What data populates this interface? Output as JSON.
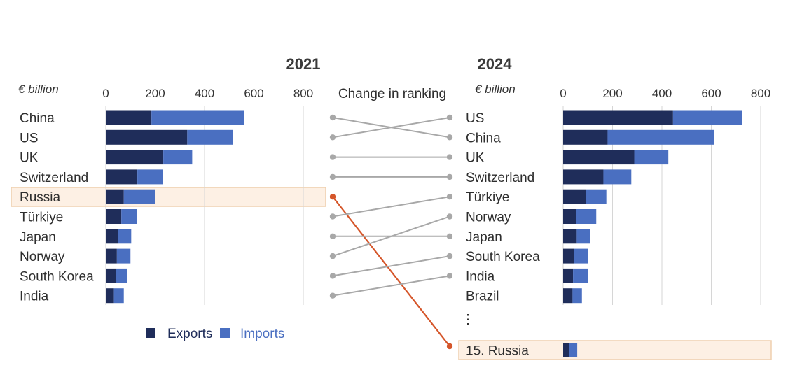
{
  "chart_data": [
    {
      "type": "bar",
      "stacked": true,
      "orientation": "horizontal",
      "title": "2021",
      "unit_label": "€ billion",
      "xlim": [
        0,
        800
      ],
      "xticks": [
        0,
        200,
        400,
        600,
        800
      ],
      "categories": [
        "China",
        "US",
        "UK",
        "Switzerland",
        "Russia",
        "Türkiye",
        "Japan",
        "Norway",
        "South Korea",
        "India"
      ],
      "highlight": "Russia",
      "series": [
        {
          "name": "Exports",
          "values": [
            185,
            330,
            233,
            128,
            73,
            63,
            50,
            45,
            40,
            33
          ]
        },
        {
          "name": "Imports",
          "values": [
            375,
            185,
            117,
            102,
            127,
            62,
            53,
            55,
            47,
            40
          ]
        }
      ]
    },
    {
      "type": "bar",
      "stacked": true,
      "orientation": "horizontal",
      "title": "2024",
      "unit_label": "€ billion",
      "xlim": [
        0,
        800
      ],
      "xticks": [
        0,
        200,
        400,
        600,
        800
      ],
      "categories": [
        "US",
        "China",
        "UK",
        "Switzerland",
        "Türkiye",
        "Norway",
        "Japan",
        "South Korea",
        "India",
        "Brazil"
      ],
      "ellipsis": "⋮",
      "extra_row": {
        "label": "15. Russia",
        "values": [
          25,
          32
        ]
      },
      "series": [
        {
          "name": "Exports",
          "values": [
            445,
            180,
            288,
            163,
            93,
            52,
            55,
            45,
            40,
            38
          ]
        },
        {
          "name": "Imports",
          "values": [
            280,
            430,
            138,
            113,
            82,
            82,
            55,
            57,
            60,
            38
          ]
        }
      ]
    }
  ],
  "ranking": {
    "title": "Change in ranking",
    "links": [
      [
        0,
        1
      ],
      [
        1,
        0
      ],
      [
        2,
        2
      ],
      [
        3,
        3
      ],
      [
        4,
        14
      ],
      [
        5,
        4
      ],
      [
        6,
        6
      ],
      [
        7,
        5
      ],
      [
        8,
        7
      ],
      [
        9,
        8
      ]
    ]
  },
  "legend": [
    {
      "name": "Exports",
      "color": "#1f2d5a"
    },
    {
      "name": "Imports",
      "color": "#4a6fc1"
    }
  ],
  "colors": {
    "exports": "#1f2d5a",
    "imports": "#4a6fc1",
    "highlight_fill": "#fdf0e4",
    "highlight_stroke": "#efcfae",
    "highlight_line": "#d5562a",
    "ranking_line": "#a8a8a8"
  }
}
